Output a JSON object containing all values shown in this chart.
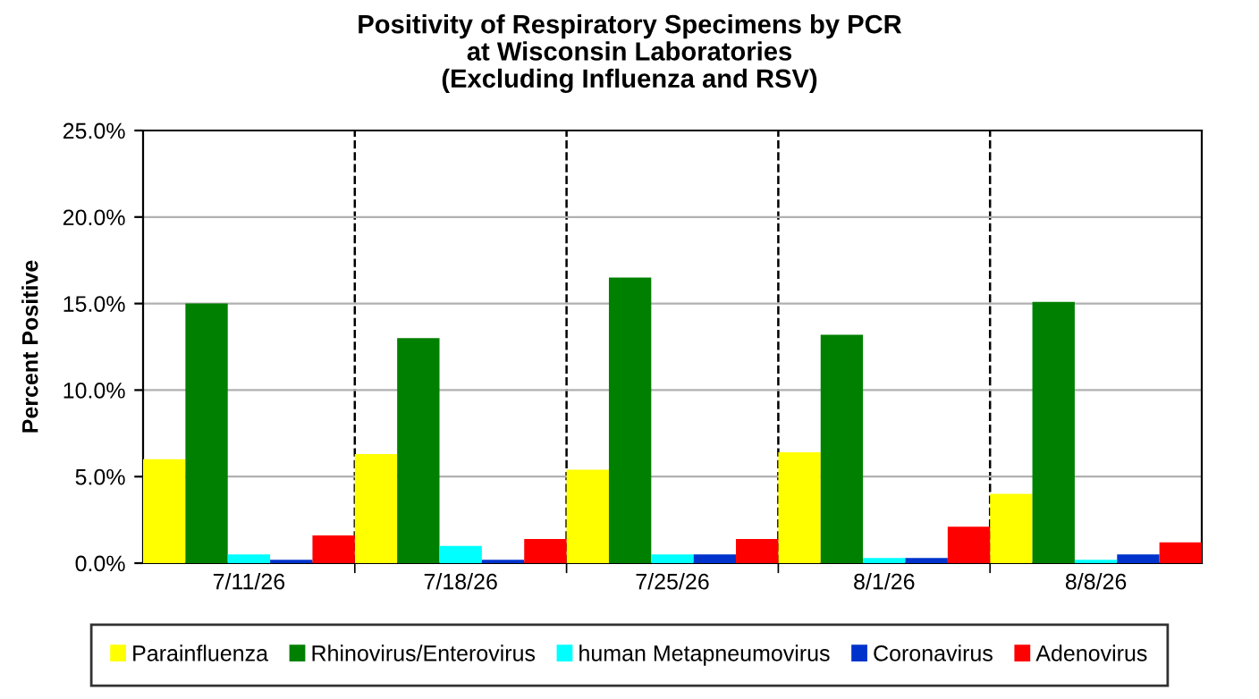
{
  "chart_data": {
    "type": "bar",
    "title": "Positivity of Respiratory Specimens by PCR\nat Wisconsin Laboratories\n(Excluding Influenza and RSV)",
    "ylabel": "Percent Positive",
    "categories": [
      "7/11/26",
      "7/18/26",
      "7/25/26",
      "8/1/26",
      "8/8/26"
    ],
    "series": [
      {
        "name": "Parainfluenza",
        "color": "#ffff00",
        "values": [
          6.0,
          6.3,
          5.4,
          6.4,
          4.0
        ]
      },
      {
        "name": "Rhinovirus/Enterovirus",
        "color": "#008000",
        "values": [
          15.0,
          13.0,
          16.5,
          13.2,
          15.1
        ]
      },
      {
        "name": "human Metapneumovirus",
        "color": "#00ffff",
        "values": [
          0.5,
          1.0,
          0.5,
          0.3,
          0.2
        ]
      },
      {
        "name": "Coronavirus",
        "color": "#0033cc",
        "values": [
          0.2,
          0.2,
          0.5,
          0.3,
          0.5
        ]
      },
      {
        "name": "Adenovirus",
        "color": "#ff0000",
        "values": [
          1.6,
          1.4,
          1.4,
          2.1,
          1.2
        ]
      }
    ],
    "ylim": [
      0,
      25
    ],
    "yticks": [
      {
        "value": 0,
        "label": "0.0%"
      },
      {
        "value": 5,
        "label": "5.0%"
      },
      {
        "value": 10,
        "label": "10.0%"
      },
      {
        "value": 15,
        "label": "15.0%"
      },
      {
        "value": 20,
        "label": "20.0%"
      },
      {
        "value": 25,
        "label": "25.0%"
      }
    ],
    "grid": true,
    "legend": "bottom"
  }
}
